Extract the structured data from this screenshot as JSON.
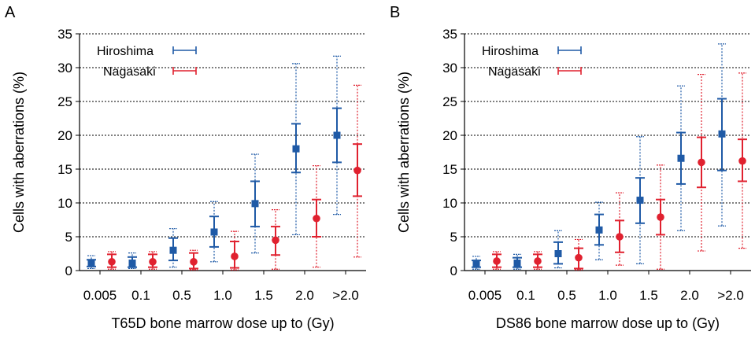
{
  "colors": {
    "hiroshima": "#1f5aa6",
    "nagasaki": "#e0212f",
    "grid": "#000000"
  },
  "chart_data": [
    {
      "type": "scatter",
      "panel": "A",
      "xlabel": "T65D bone marrow dose up to (Gy)",
      "ylabel": "Cells with aberrations (%)",
      "categories": [
        "0.005",
        "0.1",
        "0.5",
        "1.0",
        "1.5",
        "2.0",
        ">2.0"
      ],
      "ylim": [
        0,
        35
      ],
      "yticks": [
        0,
        5,
        10,
        15,
        20,
        25,
        30,
        35
      ],
      "grid": "horizontal-dotted",
      "legend": "top-left",
      "series": [
        {
          "name": "Hiroshima",
          "marker": "square",
          "values": [
            1.1,
            1.1,
            3.0,
            5.7,
            9.9,
            18.0,
            20.0
          ],
          "ci_inner": [
            [
              0.6,
              1.6
            ],
            [
              0.5,
              2.0
            ],
            [
              1.5,
              4.8
            ],
            [
              3.5,
              8.0
            ],
            [
              6.5,
              13.2
            ],
            [
              14.5,
              21.7
            ],
            [
              16.0,
              24.0
            ]
          ],
          "ci_outer": [
            [
              0.3,
              2.2
            ],
            [
              0.3,
              2.6
            ],
            [
              0.5,
              6.2
            ],
            [
              1.3,
              10.2
            ],
            [
              2.6,
              17.2
            ],
            [
              5.3,
              30.6
            ],
            [
              8.3,
              31.7
            ]
          ]
        },
        {
          "name": "Nagasaki",
          "marker": "circle",
          "values": [
            1.3,
            1.3,
            1.3,
            2.1,
            4.5,
            7.7,
            14.8
          ],
          "ci_inner": [
            [
              0.5,
              2.4
            ],
            [
              0.5,
              2.4
            ],
            [
              0.3,
              2.6
            ],
            [
              0.4,
              4.3
            ],
            [
              2.3,
              6.5
            ],
            [
              5.0,
              10.5
            ],
            [
              11.0,
              18.7
            ]
          ],
          "ci_outer": [
            [
              0.2,
              2.8
            ],
            [
              0.2,
              2.8
            ],
            [
              0.1,
              3.0
            ],
            [
              0.1,
              5.8
            ],
            [
              0.2,
              9.0
            ],
            [
              0.5,
              15.5
            ],
            [
              2.0,
              27.4
            ]
          ]
        }
      ]
    },
    {
      "type": "scatter",
      "panel": "B",
      "xlabel": "DS86 bone marrow dose up to (Gy)",
      "ylabel": "Cells with aberrations (%)",
      "categories": [
        "0.005",
        "0.1",
        "0.5",
        "1.0",
        "1.5",
        "2.0",
        ">2.0"
      ],
      "ylim": [
        0,
        35
      ],
      "yticks": [
        0,
        5,
        10,
        15,
        20,
        25,
        30,
        35
      ],
      "grid": "horizontal-dotted",
      "legend": "top-left",
      "series": [
        {
          "name": "Hiroshima",
          "marker": "square",
          "values": [
            1.0,
            1.1,
            2.5,
            6.0,
            10.4,
            16.6,
            20.2
          ],
          "ci_inner": [
            [
              0.5,
              1.5
            ],
            [
              0.5,
              1.9
            ],
            [
              1.0,
              4.2
            ],
            [
              3.8,
              8.3
            ],
            [
              7.0,
              13.7
            ],
            [
              12.8,
              20.4
            ],
            [
              14.8,
              25.4
            ]
          ],
          "ci_outer": [
            [
              0.2,
              2.1
            ],
            [
              0.2,
              2.4
            ],
            [
              0.4,
              5.9
            ],
            [
              1.6,
              10.1
            ],
            [
              1.0,
              19.8
            ],
            [
              5.9,
              27.3
            ],
            [
              6.6,
              33.5
            ]
          ]
        },
        {
          "name": "Nagasaki",
          "marker": "circle",
          "values": [
            1.4,
            1.4,
            1.9,
            5.0,
            7.9,
            16.0,
            16.2
          ],
          "ci_inner": [
            [
              0.5,
              2.4
            ],
            [
              0.5,
              2.4
            ],
            [
              0.3,
              3.3
            ],
            [
              2.7,
              7.4
            ],
            [
              5.3,
              10.5
            ],
            [
              12.3,
              19.7
            ],
            [
              13.2,
              19.4
            ]
          ],
          "ci_outer": [
            [
              0.2,
              2.8
            ],
            [
              0.2,
              2.8
            ],
            [
              0.1,
              4.6
            ],
            [
              0.8,
              11.5
            ],
            [
              0.2,
              15.6
            ],
            [
              2.9,
              29.0
            ],
            [
              3.3,
              29.2
            ]
          ]
        }
      ]
    }
  ]
}
